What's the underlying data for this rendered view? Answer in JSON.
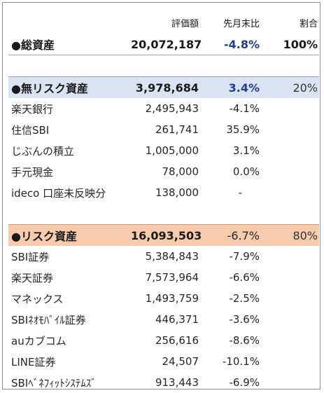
{
  "header": {
    "value": "評価額",
    "change": "先月末比",
    "ratio": "割合"
  },
  "total": {
    "name": "●総資産",
    "value": "20,072,187",
    "change": "-4.8%",
    "ratio": "100%"
  },
  "riskfree": {
    "name": "●無リスク資産",
    "value": "3,978,684",
    "change": "3.4%",
    "ratio": "20%",
    "items": [
      {
        "name": "楽天銀行",
        "value": "2,495,943",
        "change": "-4.1%"
      },
      {
        "name": "住信SBI",
        "value": "261,741",
        "change": "35.9%"
      },
      {
        "name": "じぶんの積立",
        "value": "1,005,000",
        "change": "3.1%"
      },
      {
        "name": "手元現金",
        "value": "78,000",
        "change": "0.0%"
      },
      {
        "name": "ideco 口座未反映分",
        "value": "138,000",
        "change": "-"
      }
    ]
  },
  "risk": {
    "name": "●リスク資産",
    "value": "16,093,503",
    "change": "-6.7%",
    "ratio": "80%",
    "items": [
      {
        "name": "SBI証券",
        "value": "5,384,843",
        "change": "-7.9%"
      },
      {
        "name": "楽天証券",
        "value": "7,573,964",
        "change": "-6.6%"
      },
      {
        "name": "マネックス",
        "value": "1,493,759",
        "change": "-2.5%"
      },
      {
        "name": "SBIﾈｵﾓﾊﾞｲﾙ証券",
        "value": "446,371",
        "change": "-3.6%"
      },
      {
        "name": "auカブコム",
        "value": "256,616",
        "change": "-8.6%"
      },
      {
        "name": "LINE証券",
        "value": "24,507",
        "change": "-10.1%"
      },
      {
        "name": "SBIﾍﾞﾈﾌｨｯﾄｼｽﾃﾑｽﾞ",
        "value": "913,443",
        "change": "-6.9%"
      }
    ]
  }
}
